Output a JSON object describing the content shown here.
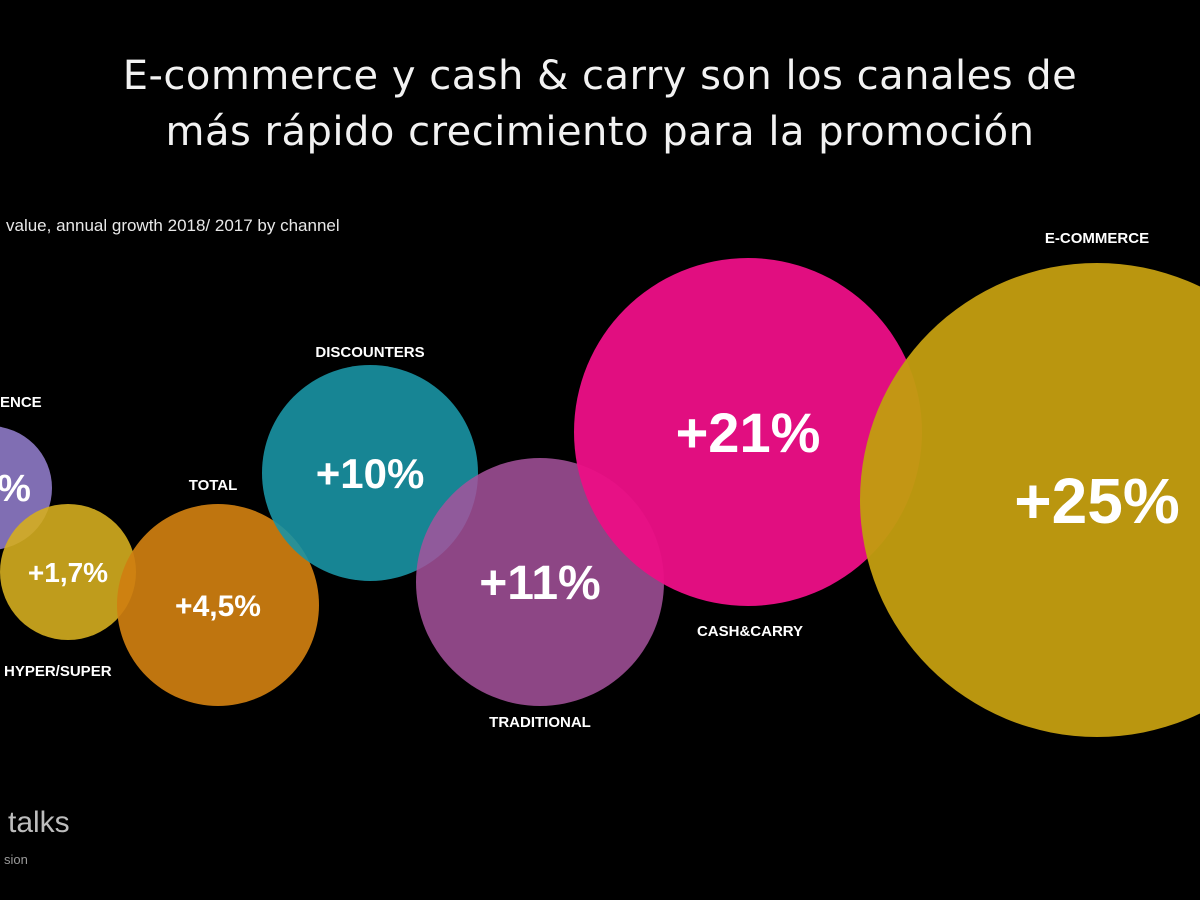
{
  "chart_data": {
    "type": "bubble",
    "title_lines": [
      "E-commerce y cash & carry son los canales de",
      "más rápido crecimiento para la promoción"
    ],
    "subtitle": "value, annual growth 2018/ 2017 by channel",
    "categories": [
      "ENCE",
      "HYPER/SUPER",
      "TOTAL",
      "DISCOUNTERS",
      "TRADITIONAL",
      "CASH&CARRY",
      "E-COMMERCE"
    ],
    "values": [
      null,
      1.7,
      4.5,
      10,
      11,
      21,
      25
    ],
    "value_labels": [
      "%",
      "+1,7%",
      "+4,5%",
      "+10%",
      "+11%",
      "+21%",
      "+25%"
    ],
    "colors": [
      "#8b77c2",
      "#d4ad1f",
      "#cf7f10",
      "#1a93a4",
      "#a6529c",
      "#ea0f85",
      "#c29c10"
    ],
    "unit": "%"
  },
  "branding": {
    "logo_text": "talks",
    "logo_sub": "sion"
  }
}
